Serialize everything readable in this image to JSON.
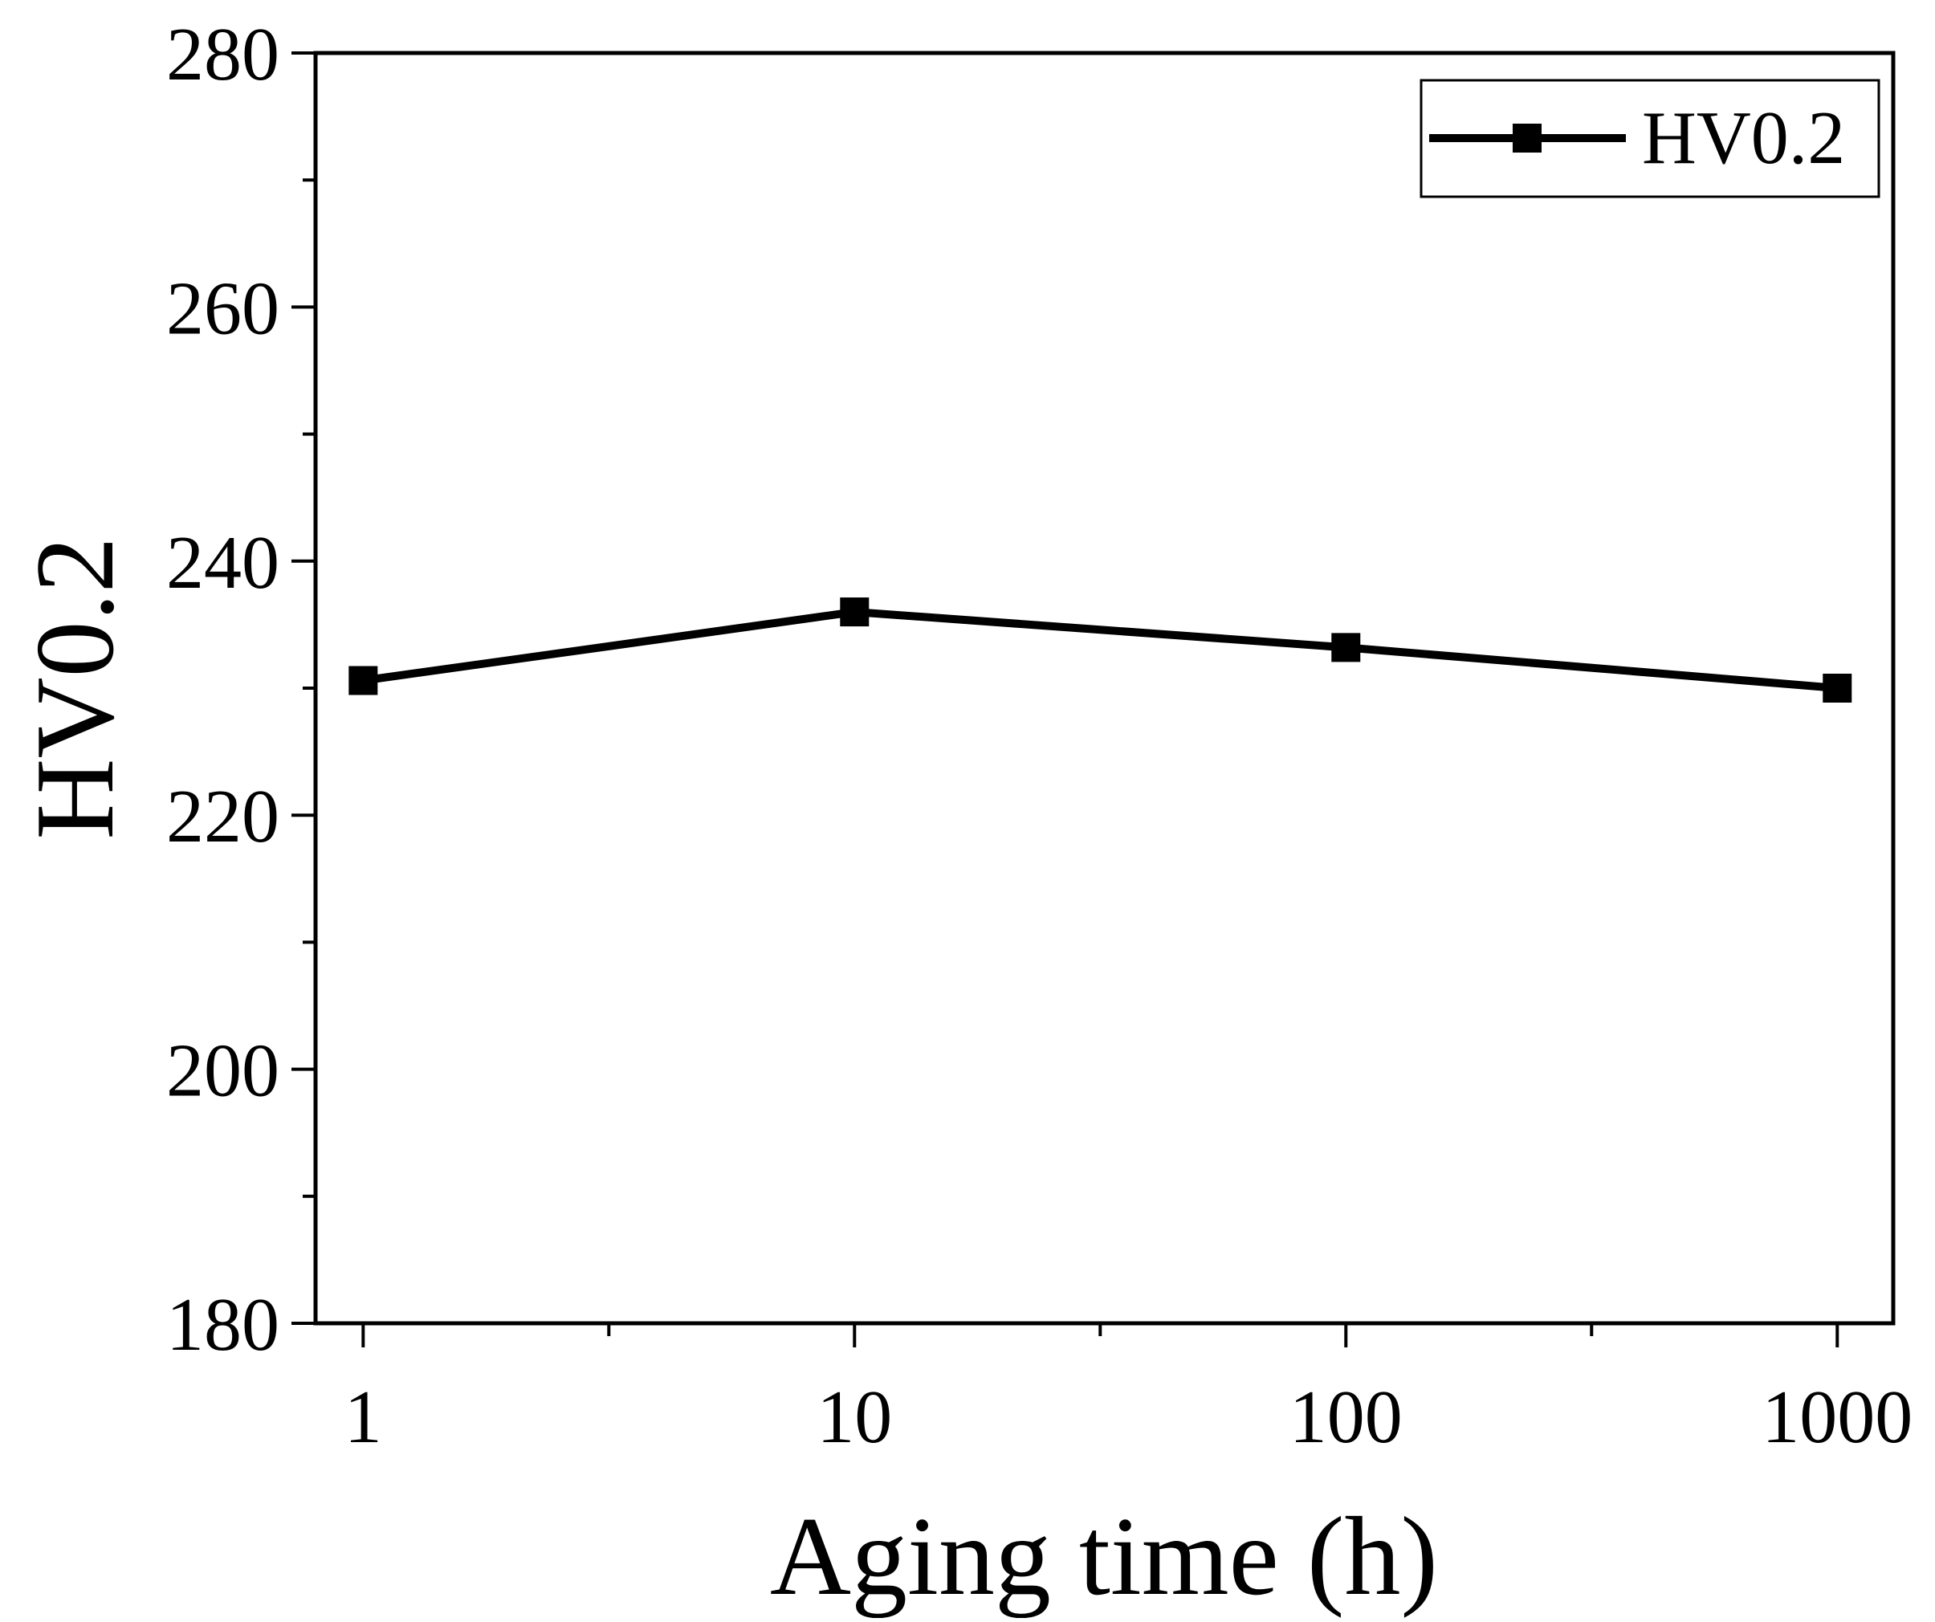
{
  "chart_data": {
    "type": "line",
    "title": "",
    "xlabel": "Aging time (h)",
    "ylabel": "HV0.2",
    "xscale": "log",
    "xlim": [
      0.8,
      1300
    ],
    "ylim": [
      180,
      280
    ],
    "x_ticks": [
      1,
      10,
      100,
      1000
    ],
    "x_tick_labels": [
      "1",
      "10",
      "100",
      "1000"
    ],
    "y_ticks": [
      180,
      200,
      220,
      240,
      260,
      280
    ],
    "y_tick_labels": [
      "180",
      "200",
      "220",
      "240",
      "260",
      "280"
    ],
    "grid": false,
    "legend_position": "top-right",
    "series": [
      {
        "name": "HV0.2",
        "marker": "square",
        "color": "#000000",
        "x": [
          1,
          10,
          100,
          1000
        ],
        "y": [
          230.6,
          236.0,
          233.2,
          230.0
        ]
      }
    ]
  }
}
